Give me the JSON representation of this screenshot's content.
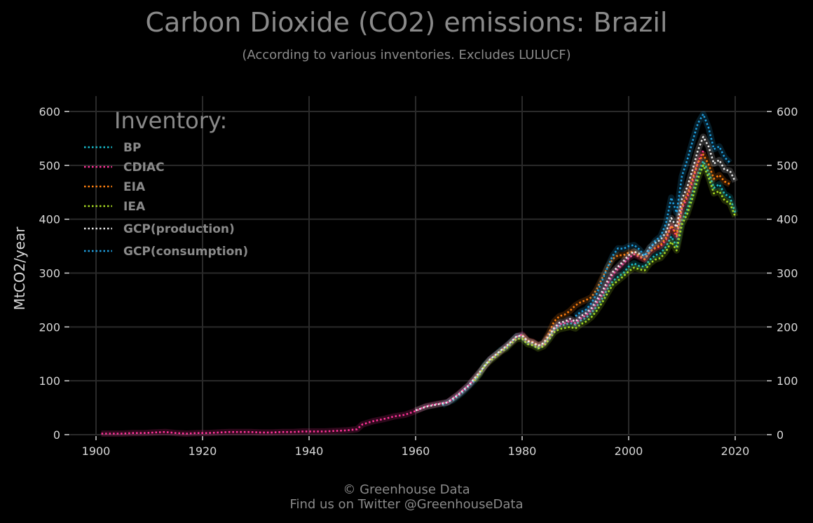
{
  "chart_data": {
    "type": "line",
    "title": "Carbon Dioxide (CO2) emissions: Brazil",
    "subtitle": "(According to various inventories. Excludes LULUCF)",
    "ylabel": "MtCO2/year",
    "xlabel": "",
    "xlim": [
      1896,
      2025
    ],
    "ylim": [
      0,
      620
    ],
    "x_ticks": [
      1900,
      1920,
      1940,
      1960,
      1980,
      2000,
      2020
    ],
    "y_ticks": [
      0,
      100,
      200,
      300,
      400,
      500,
      600
    ],
    "grid": true,
    "legend_title": "Inventory:",
    "legend_position": "top-left",
    "series": [
      {
        "name": "BP",
        "color": "#17becf",
        "points": [
          [
            1965,
            55
          ],
          [
            1966,
            60
          ],
          [
            1967,
            64
          ],
          [
            1968,
            72
          ],
          [
            1969,
            80
          ],
          [
            1970,
            90
          ],
          [
            1971,
            100
          ],
          [
            1972,
            113
          ],
          [
            1973,
            130
          ],
          [
            1974,
            140
          ],
          [
            1975,
            148
          ],
          [
            1976,
            157
          ],
          [
            1977,
            162
          ],
          [
            1978,
            173
          ],
          [
            1979,
            183
          ],
          [
            1980,
            182
          ],
          [
            1981,
            172
          ],
          [
            1982,
            170
          ],
          [
            1983,
            163
          ],
          [
            1984,
            168
          ],
          [
            1985,
            180
          ],
          [
            1986,
            195
          ],
          [
            1987,
            202
          ],
          [
            1988,
            204
          ],
          [
            1989,
            207
          ],
          [
            1990,
            204
          ],
          [
            1991,
            212
          ],
          [
            1992,
            217
          ],
          [
            1993,
            226
          ],
          [
            1994,
            238
          ],
          [
            1995,
            252
          ],
          [
            1996,
            270
          ],
          [
            1997,
            285
          ],
          [
            1998,
            293
          ],
          [
            1999,
            300
          ],
          [
            2000,
            312
          ],
          [
            2001,
            318
          ],
          [
            2002,
            313
          ],
          [
            2003,
            312
          ],
          [
            2004,
            325
          ],
          [
            2005,
            333
          ],
          [
            2006,
            337
          ],
          [
            2007,
            349
          ],
          [
            2008,
            368
          ],
          [
            2009,
            350
          ],
          [
            2010,
            398
          ],
          [
            2011,
            418
          ],
          [
            2012,
            449
          ],
          [
            2013,
            485
          ],
          [
            2014,
            508
          ],
          [
            2015,
            487
          ],
          [
            2016,
            458
          ],
          [
            2017,
            465
          ],
          [
            2018,
            447
          ],
          [
            2019,
            441
          ],
          [
            2020,
            412
          ]
        ]
      },
      {
        "name": "CDIAC",
        "color": "#ff3399",
        "points": [
          [
            1901,
            2
          ],
          [
            1903,
            2
          ],
          [
            1905,
            2
          ],
          [
            1907,
            3
          ],
          [
            1909,
            3
          ],
          [
            1911,
            4
          ],
          [
            1913,
            5
          ],
          [
            1915,
            3
          ],
          [
            1917,
            2
          ],
          [
            1919,
            3
          ],
          [
            1921,
            3
          ],
          [
            1923,
            4
          ],
          [
            1925,
            5
          ],
          [
            1927,
            5
          ],
          [
            1929,
            5
          ],
          [
            1931,
            4
          ],
          [
            1933,
            4
          ],
          [
            1935,
            5
          ],
          [
            1937,
            5
          ],
          [
            1939,
            6
          ],
          [
            1941,
            6
          ],
          [
            1943,
            6
          ],
          [
            1945,
            7
          ],
          [
            1947,
            8
          ],
          [
            1949,
            10
          ],
          [
            1950,
            19
          ],
          [
            1952,
            25
          ],
          [
            1954,
            29
          ],
          [
            1956,
            34
          ],
          [
            1958,
            37
          ],
          [
            1960,
            44
          ],
          [
            1962,
            53
          ],
          [
            1964,
            57
          ],
          [
            1966,
            60
          ],
          [
            1968,
            75
          ],
          [
            1970,
            92
          ],
          [
            1972,
            115
          ],
          [
            1974,
            140
          ],
          [
            1976,
            155
          ],
          [
            1978,
            172
          ],
          [
            1979,
            182
          ],
          [
            1980,
            186
          ],
          [
            1981,
            174
          ],
          [
            1982,
            172
          ],
          [
            1983,
            166
          ],
          [
            1984,
            168
          ],
          [
            1985,
            182
          ],
          [
            1986,
            196
          ],
          [
            1987,
            205
          ],
          [
            1988,
            207
          ],
          [
            1989,
            212
          ],
          [
            1990,
            207
          ],
          [
            1991,
            216
          ],
          [
            1992,
            222
          ],
          [
            1993,
            232
          ],
          [
            1994,
            245
          ],
          [
            1995,
            260
          ],
          [
            1996,
            280
          ],
          [
            1997,
            298
          ],
          [
            1998,
            308
          ],
          [
            1999,
            318
          ],
          [
            2000,
            328
          ],
          [
            2001,
            335
          ],
          [
            2002,
            330
          ],
          [
            2003,
            325
          ],
          [
            2004,
            340
          ],
          [
            2005,
            346
          ],
          [
            2006,
            350
          ],
          [
            2007,
            362
          ],
          [
            2008,
            388
          ],
          [
            2009,
            368
          ],
          [
            2010,
            420
          ],
          [
            2011,
            440
          ],
          [
            2012,
            470
          ],
          [
            2013,
            505
          ],
          [
            2014,
            527
          ]
        ]
      },
      {
        "name": "EIA",
        "color": "#ff7f0e",
        "points": [
          [
            1980,
            185
          ],
          [
            1981,
            175
          ],
          [
            1982,
            172
          ],
          [
            1983,
            166
          ],
          [
            1984,
            170
          ],
          [
            1985,
            188
          ],
          [
            1986,
            210
          ],
          [
            1987,
            220
          ],
          [
            1988,
            223
          ],
          [
            1989,
            230
          ],
          [
            1990,
            240
          ],
          [
            1991,
            246
          ],
          [
            1992,
            250
          ],
          [
            1993,
            255
          ],
          [
            1994,
            270
          ],
          [
            1995,
            290
          ],
          [
            1996,
            310
          ],
          [
            1997,
            326
          ],
          [
            1998,
            333
          ],
          [
            1999,
            333
          ],
          [
            2000,
            338
          ],
          [
            2001,
            340
          ],
          [
            2002,
            332
          ],
          [
            2003,
            326
          ],
          [
            2004,
            340
          ],
          [
            2005,
            347
          ],
          [
            2006,
            352
          ],
          [
            2007,
            365
          ],
          [
            2008,
            388
          ],
          [
            2009,
            372
          ],
          [
            2010,
            425
          ],
          [
            2011,
            445
          ],
          [
            2012,
            475
          ],
          [
            2013,
            505
          ],
          [
            2014,
            520
          ],
          [
            2015,
            502
          ],
          [
            2016,
            475
          ],
          [
            2017,
            482
          ],
          [
            2018,
            470
          ],
          [
            2019,
            465
          ]
        ]
      },
      {
        "name": "IEA",
        "color": "#aadd22",
        "points": [
          [
            1971,
            100
          ],
          [
            1972,
            112
          ],
          [
            1973,
            128
          ],
          [
            1974,
            137
          ],
          [
            1975,
            145
          ],
          [
            1976,
            154
          ],
          [
            1977,
            160
          ],
          [
            1978,
            170
          ],
          [
            1979,
            178
          ],
          [
            1980,
            178
          ],
          [
            1981,
            168
          ],
          [
            1982,
            166
          ],
          [
            1983,
            160
          ],
          [
            1984,
            164
          ],
          [
            1985,
            176
          ],
          [
            1986,
            190
          ],
          [
            1987,
            196
          ],
          [
            1988,
            198
          ],
          [
            1989,
            200
          ],
          [
            1990,
            197
          ],
          [
            1991,
            205
          ],
          [
            1992,
            210
          ],
          [
            1993,
            218
          ],
          [
            1994,
            230
          ],
          [
            1995,
            245
          ],
          [
            1996,
            262
          ],
          [
            1997,
            278
          ],
          [
            1998,
            286
          ],
          [
            1999,
            294
          ],
          [
            2000,
            303
          ],
          [
            2001,
            310
          ],
          [
            2002,
            307
          ],
          [
            2003,
            305
          ],
          [
            2004,
            318
          ],
          [
            2005,
            325
          ],
          [
            2006,
            328
          ],
          [
            2007,
            340
          ],
          [
            2008,
            358
          ],
          [
            2009,
            342
          ],
          [
            2010,
            390
          ],
          [
            2011,
            410
          ],
          [
            2012,
            440
          ],
          [
            2013,
            475
          ],
          [
            2014,
            500
          ],
          [
            2015,
            478
          ],
          [
            2016,
            448
          ],
          [
            2017,
            452
          ],
          [
            2018,
            435
          ],
          [
            2019,
            430
          ],
          [
            2020,
            405
          ]
        ]
      },
      {
        "name": "GCP(production)",
        "color": "#e8e8e8",
        "points": [
          [
            1960,
            45
          ],
          [
            1962,
            52
          ],
          [
            1964,
            56
          ],
          [
            1966,
            60
          ],
          [
            1968,
            74
          ],
          [
            1970,
            92
          ],
          [
            1972,
            116
          ],
          [
            1974,
            140
          ],
          [
            1976,
            156
          ],
          [
            1978,
            173
          ],
          [
            1979,
            183
          ],
          [
            1980,
            184
          ],
          [
            1981,
            174
          ],
          [
            1982,
            171
          ],
          [
            1983,
            165
          ],
          [
            1984,
            170
          ],
          [
            1985,
            183
          ],
          [
            1986,
            198
          ],
          [
            1987,
            208
          ],
          [
            1988,
            210
          ],
          [
            1989,
            215
          ],
          [
            1990,
            210
          ],
          [
            1991,
            220
          ],
          [
            1992,
            226
          ],
          [
            1993,
            235
          ],
          [
            1994,
            250
          ],
          [
            1995,
            265
          ],
          [
            1996,
            285
          ],
          [
            1997,
            302
          ],
          [
            1998,
            312
          ],
          [
            1999,
            322
          ],
          [
            2000,
            333
          ],
          [
            2001,
            340
          ],
          [
            2002,
            336
          ],
          [
            2003,
            332
          ],
          [
            2004,
            348
          ],
          [
            2005,
            356
          ],
          [
            2006,
            362
          ],
          [
            2007,
            376
          ],
          [
            2008,
            402
          ],
          [
            2009,
            385
          ],
          [
            2010,
            438
          ],
          [
            2011,
            460
          ],
          [
            2012,
            492
          ],
          [
            2013,
            528
          ],
          [
            2014,
            553
          ],
          [
            2015,
            535
          ],
          [
            2016,
            503
          ],
          [
            2017,
            510
          ],
          [
            2018,
            492
          ],
          [
            2019,
            490
          ],
          [
            2020,
            470
          ]
        ]
      },
      {
        "name": "GCP(consumption)",
        "color": "#1f9fe0",
        "points": [
          [
            1990,
            220
          ],
          [
            1991,
            228
          ],
          [
            1992,
            232
          ],
          [
            1993,
            244
          ],
          [
            1994,
            262
          ],
          [
            1995,
            285
          ],
          [
            1996,
            310
          ],
          [
            1997,
            332
          ],
          [
            1998,
            346
          ],
          [
            1999,
            345
          ],
          [
            2000,
            350
          ],
          [
            2001,
            352
          ],
          [
            2002,
            344
          ],
          [
            2003,
            332
          ],
          [
            2004,
            345
          ],
          [
            2005,
            360
          ],
          [
            2006,
            368
          ],
          [
            2007,
            392
          ],
          [
            2008,
            440
          ],
          [
            2009,
            412
          ],
          [
            2010,
            480
          ],
          [
            2011,
            510
          ],
          [
            2012,
            545
          ],
          [
            2013,
            578
          ],
          [
            2014,
            595
          ],
          [
            2015,
            570
          ],
          [
            2016,
            530
          ],
          [
            2017,
            535
          ],
          [
            2018,
            515
          ],
          [
            2019,
            505
          ]
        ]
      }
    ]
  },
  "footer": {
    "line1": "© Greenhouse Data",
    "line2": "Find us on Twitter @GreenhouseData"
  }
}
